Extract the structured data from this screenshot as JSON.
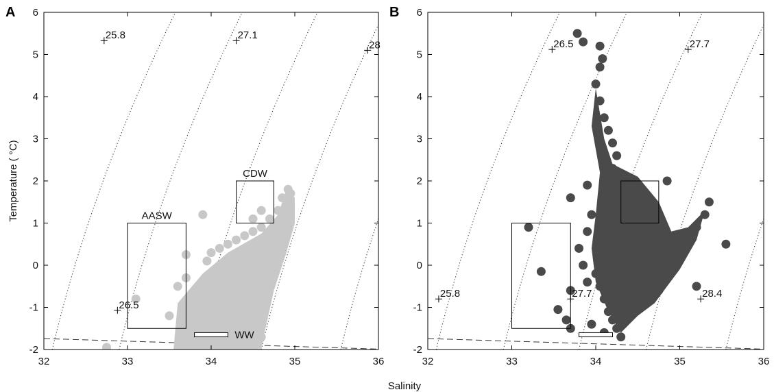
{
  "x_label": "Salinity",
  "y_label": "Temperature ( °C)",
  "chart_data": [
    {
      "type": "scatter",
      "panel": "A",
      "xlim": [
        32,
        36
      ],
      "ylim": [
        -2,
        6
      ],
      "x_ticks": [
        "32",
        "33",
        "34",
        "35",
        "36"
      ],
      "y_ticks": [
        "-2",
        "-1",
        "0",
        "1",
        "2",
        "3",
        "4",
        "5",
        "6"
      ],
      "grid": false,
      "point_color": "#c8c8c8",
      "isopycnal_labels": [
        {
          "text": "25.8",
          "s": 32.72,
          "t": 5.33
        },
        {
          "text": "27.1",
          "s": 34.3,
          "t": 5.33
        },
        {
          "text": "28",
          "s": 35.87,
          "t": 5.1
        },
        {
          "text": "26.5",
          "s": 32.88,
          "t": -1.07
        }
      ],
      "water_masses": [
        {
          "name": "AASW",
          "s_range": [
            33.0,
            33.7
          ],
          "t_range": [
            -1.5,
            1.0
          ]
        },
        {
          "name": "CDW",
          "s_range": [
            34.3,
            34.75
          ],
          "t_range": [
            1.0,
            2.0
          ]
        },
        {
          "name": "WW",
          "s_range": [
            33.8,
            34.2
          ],
          "t_range": [
            -1.7,
            -1.6
          ]
        }
      ],
      "points": [
        [
          32.75,
          -1.95
        ],
        [
          33.1,
          -0.8
        ],
        [
          33.5,
          -1.2
        ],
        [
          33.6,
          -0.5
        ],
        [
          33.7,
          0.25
        ],
        [
          33.7,
          -0.3
        ],
        [
          33.9,
          1.2
        ],
        [
          33.85,
          -0.5
        ],
        [
          33.95,
          0.1
        ],
        [
          34.0,
          0.3
        ],
        [
          34.1,
          0.4
        ],
        [
          34.2,
          0.5
        ],
        [
          34.3,
          0.6
        ],
        [
          34.4,
          0.7
        ],
        [
          34.5,
          0.8
        ],
        [
          34.6,
          0.9
        ],
        [
          34.7,
          1.1
        ],
        [
          34.8,
          1.3
        ],
        [
          34.9,
          1.5
        ],
        [
          34.95,
          1.7
        ],
        [
          34.92,
          1.8
        ],
        [
          34.85,
          1.6
        ],
        [
          34.6,
          1.3
        ],
        [
          34.5,
          1.1
        ],
        [
          34.4,
          0.2
        ],
        [
          34.6,
          0.5
        ],
        [
          34.8,
          1.0
        ],
        [
          34.2,
          -0.2
        ],
        [
          34.5,
          0.0
        ],
        [
          34.0,
          -0.4
        ],
        [
          33.9,
          -0.8
        ],
        [
          33.8,
          -1.3
        ],
        [
          34.0,
          -1.5
        ],
        [
          34.2,
          -1.8
        ],
        [
          34.4,
          -1.9
        ],
        [
          34.6,
          -1.7
        ],
        [
          34.3,
          -1.0
        ],
        [
          34.1,
          -0.6
        ],
        [
          34.7,
          0.6
        ],
        [
          34.75,
          0.9
        ]
      ]
    },
    {
      "type": "scatter",
      "panel": "B",
      "xlim": [
        32,
        36
      ],
      "ylim": [
        -2,
        6
      ],
      "x_ticks": [
        "32",
        "33",
        "34",
        "35",
        "36"
      ],
      "y_ticks": [
        "-2",
        "-1",
        "0",
        "1",
        "2",
        "3",
        "4",
        "5",
        "6"
      ],
      "grid": false,
      "point_color": "#4a4a4a",
      "isopycnal_labels": [
        {
          "text": "26.5",
          "s": 33.48,
          "t": 5.12
        },
        {
          "text": "27.7",
          "s": 35.1,
          "t": 5.12
        },
        {
          "text": "25.8",
          "s": 32.13,
          "t": -0.8
        },
        {
          "text": "27.7",
          "s": 33.7,
          "t": -0.8
        },
        {
          "text": "28.4",
          "s": 35.25,
          "t": -0.8
        }
      ],
      "water_masses": [
        {
          "name": "AASW",
          "s_range": [
            33.0,
            33.7
          ],
          "t_range": [
            -1.5,
            1.0
          ]
        },
        {
          "name": "CDW",
          "s_range": [
            34.3,
            34.75
          ],
          "t_range": [
            1.0,
            2.0
          ]
        },
        {
          "name": "WW",
          "s_range": [
            33.8,
            34.2
          ],
          "t_range": [
            -1.7,
            -1.6
          ]
        }
      ],
      "points": [
        [
          33.78,
          5.5
        ],
        [
          33.85,
          5.3
        ],
        [
          34.05,
          5.2
        ],
        [
          34.08,
          4.9
        ],
        [
          34.05,
          4.7
        ],
        [
          34.0,
          4.3
        ],
        [
          34.05,
          3.9
        ],
        [
          34.1,
          3.5
        ],
        [
          34.15,
          3.2
        ],
        [
          34.2,
          2.9
        ],
        [
          34.1,
          2.6
        ],
        [
          34.2,
          2.3
        ],
        [
          34.3,
          2.1
        ],
        [
          34.5,
          1.9
        ],
        [
          34.6,
          1.6
        ],
        [
          34.5,
          1.3
        ],
        [
          34.4,
          1.0
        ],
        [
          34.3,
          0.7
        ],
        [
          34.2,
          0.4
        ],
        [
          34.1,
          0.1
        ],
        [
          34.0,
          -0.2
        ],
        [
          34.05,
          -0.5
        ],
        [
          34.1,
          -0.8
        ],
        [
          34.15,
          -1.1
        ],
        [
          34.2,
          -1.3
        ],
        [
          34.25,
          -1.5
        ],
        [
          34.3,
          -1.7
        ],
        [
          34.4,
          0.3
        ],
        [
          34.6,
          0.0
        ],
        [
          34.8,
          -0.3
        ],
        [
          34.9,
          0.0
        ],
        [
          35.0,
          0.3
        ],
        [
          35.1,
          0.6
        ],
        [
          35.2,
          0.9
        ],
        [
          35.3,
          1.2
        ],
        [
          35.35,
          1.5
        ],
        [
          35.55,
          0.5
        ],
        [
          35.2,
          -0.5
        ],
        [
          34.95,
          0.6
        ],
        [
          34.8,
          0.9
        ],
        [
          34.7,
          1.2
        ],
        [
          34.85,
          2.0
        ],
        [
          33.9,
          1.9
        ],
        [
          33.7,
          1.6
        ],
        [
          33.95,
          1.2
        ],
        [
          33.9,
          0.8
        ],
        [
          33.8,
          0.4
        ],
        [
          33.85,
          0.0
        ],
        [
          33.9,
          -0.4
        ],
        [
          33.7,
          -0.6
        ],
        [
          33.65,
          -1.3
        ],
        [
          33.7,
          -1.5
        ],
        [
          33.2,
          0.9
        ],
        [
          33.35,
          -0.15
        ],
        [
          33.55,
          -1.05
        ],
        [
          34.2,
          1.5
        ],
        [
          34.25,
          2.6
        ],
        [
          34.4,
          -0.2
        ],
        [
          34.6,
          -0.8
        ],
        [
          34.75,
          -0.6
        ],
        [
          34.3,
          -1.0
        ],
        [
          33.95,
          -1.4
        ],
        [
          34.35,
          0.9
        ],
        [
          34.55,
          0.4
        ],
        [
          34.1,
          -1.6
        ]
      ]
    }
  ]
}
